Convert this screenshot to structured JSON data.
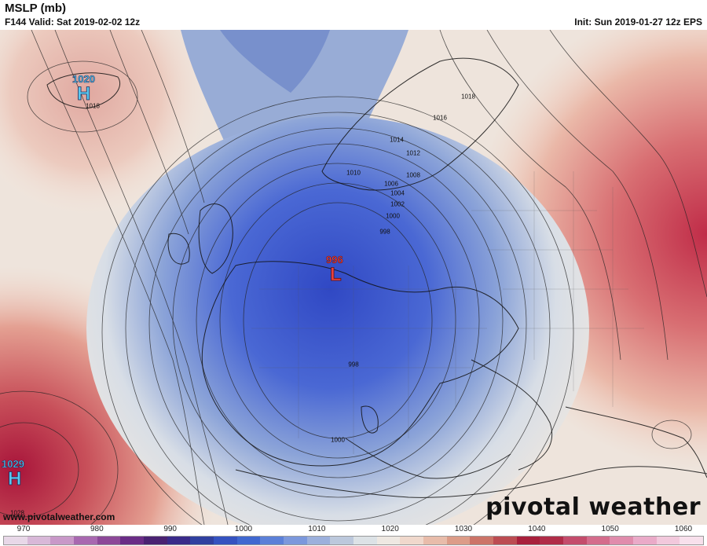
{
  "header": {
    "title": "MSLP (mb)",
    "valid": "F144 Valid: Sat 2019-02-02 12z",
    "init": "Init: Sun 2019-01-27 12z EPS"
  },
  "pressure_centers": [
    {
      "type": "H",
      "value": "1020",
      "color": "#5ac8f0"
    },
    {
      "type": "H",
      "value": "1029",
      "color": "#5ac8f0"
    },
    {
      "type": "L",
      "value": "996",
      "color": "#e8403c"
    }
  ],
  "contour_labels": [
    "1018",
    "1018",
    "1016",
    "1014",
    "1012",
    "1010",
    "1008",
    "1006",
    "1004",
    "1002",
    "1000",
    "998",
    "998",
    "1000",
    "1028"
  ],
  "colorbar": {
    "ticks": [
      "970",
      "980",
      "990",
      "1000",
      "1010",
      "1020",
      "1030",
      "1040",
      "1050",
      "1060"
    ],
    "colors": [
      "#e8d8e8",
      "#d8b8d8",
      "#c898c8",
      "#a868b0",
      "#8c4898",
      "#6a2c86",
      "#4a2272",
      "#3a2a8a",
      "#3040a0",
      "#3552c0",
      "#4068d0",
      "#5c80d8",
      "#7c98dc",
      "#9cb0dc",
      "#bcc8dc",
      "#dce2e6",
      "#eee8e2",
      "#f0d8cc",
      "#e8bcaa",
      "#dc9c88",
      "#cc7468",
      "#bc4c52",
      "#a8203c",
      "#b02c48",
      "#c44c6c",
      "#d46c8c",
      "#e08cac",
      "#eaaac8",
      "#f2c8dc",
      "#f8e0ec"
    ]
  },
  "branding": {
    "watermark": "pivotal weather",
    "url": "www.pivotalweather.com"
  }
}
